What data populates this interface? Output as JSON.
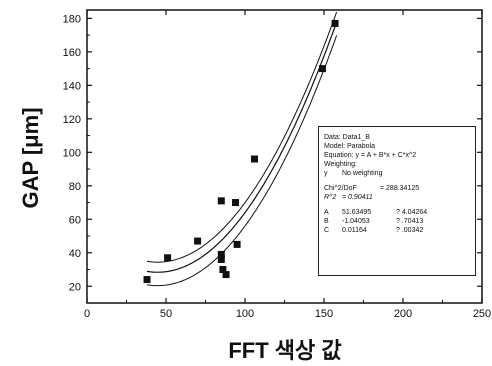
{
  "chart_data": {
    "type": "scatter",
    "xlabel": "FFT 색상 값",
    "ylabel": "GAP [μm]",
    "xlim": [
      0,
      250
    ],
    "ylim": [
      10,
      185
    ],
    "x_ticks": [
      "0",
      "50",
      "100",
      "150",
      "200",
      "250"
    ],
    "y_ticks": [
      "20",
      "40",
      "60",
      "80",
      "100",
      "120",
      "140",
      "160",
      "180"
    ],
    "grid": false,
    "points": [
      {
        "x": 38,
        "y": 24
      },
      {
        "x": 51,
        "y": 37
      },
      {
        "x": 70,
        "y": 47
      },
      {
        "x": 85,
        "y": 71
      },
      {
        "x": 85,
        "y": 39
      },
      {
        "x": 85,
        "y": 36
      },
      {
        "x": 86,
        "y": 30
      },
      {
        "x": 88,
        "y": 27
      },
      {
        "x": 94,
        "y": 70
      },
      {
        "x": 95,
        "y": 45
      },
      {
        "x": 106,
        "y": 96
      },
      {
        "x": 149,
        "y": 150
      },
      {
        "x": 157,
        "y": 177
      }
    ],
    "fit": {
      "A": 51.63495,
      "B": -1.04053,
      "C": 0.01164,
      "x_range": [
        38,
        158
      ]
    },
    "confidence_offsets": [
      -8,
      6
    ]
  },
  "fit_box": {
    "data_label": "Data: Data1_B",
    "model_label": "Model: Parabola",
    "equation_label": "Equation: y = A + B*x + C*x^2",
    "weighting_label": "Weighting:",
    "weighting_y": "y",
    "weighting_value": "No weighting",
    "chi_label": "Chi^2/DoF",
    "chi_value": "= 288.34125",
    "r2_label": "R^2",
    "r2_value": "= 0.90411",
    "params": [
      {
        "name": "A",
        "value": "51.63495",
        "err": "? 4.04264"
      },
      {
        "name": "B",
        "value": "-1.04053",
        "err": "? .70413"
      },
      {
        "name": "C",
        "value": "0.01164",
        "err": "? .00342"
      }
    ]
  }
}
